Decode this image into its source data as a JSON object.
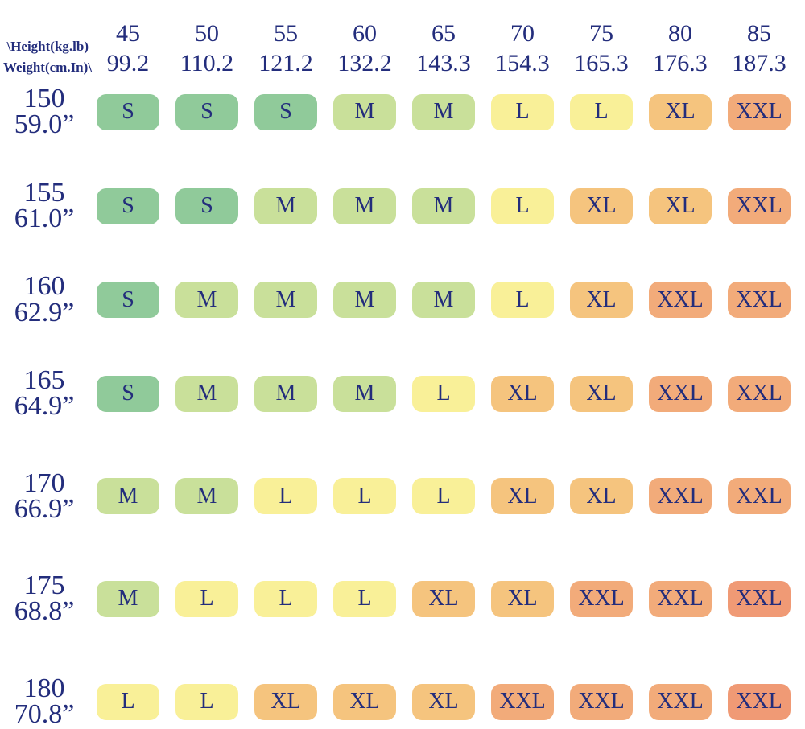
{
  "header": {
    "corner_line1": "\\Height(kg.lb)",
    "corner_line2": "Weight(cm.In)\\"
  },
  "colors": {
    "text": "#232d7c",
    "background": "#ffffff",
    "sizes": {
      "S": "#90ca9a",
      "M": "#c9e09a",
      "L": "#f9f098",
      "XL": "#f5c47e",
      "XXL": "#f2ab7a",
      "XXL_hot": "#f09a75"
    }
  },
  "chart_data": {
    "type": "table",
    "columns": [
      {
        "kg": "45",
        "lb": "99.2"
      },
      {
        "kg": "50",
        "lb": "110.2"
      },
      {
        "kg": "55",
        "lb": "121.2"
      },
      {
        "kg": "60",
        "lb": "132.2"
      },
      {
        "kg": "65",
        "lb": "143.3"
      },
      {
        "kg": "70",
        "lb": "154.3"
      },
      {
        "kg": "75",
        "lb": "165.3"
      },
      {
        "kg": "80",
        "lb": "176.3"
      },
      {
        "kg": "85",
        "lb": "187.3"
      }
    ],
    "rows": [
      {
        "cm": "150",
        "inch": "59.0”",
        "sizes": [
          "S",
          "S",
          "S",
          "M",
          "M",
          "L",
          "L",
          "XL",
          "XXL"
        ]
      },
      {
        "cm": "155",
        "inch": "61.0”",
        "sizes": [
          "S",
          "S",
          "M",
          "M",
          "M",
          "L",
          "XL",
          "XL",
          "XXL"
        ]
      },
      {
        "cm": "160",
        "inch": "62.9”",
        "sizes": [
          "S",
          "M",
          "M",
          "M",
          "M",
          "L",
          "XL",
          "XXL",
          "XXL"
        ]
      },
      {
        "cm": "165",
        "inch": "64.9”",
        "sizes": [
          "S",
          "M",
          "M",
          "M",
          "L",
          "XL",
          "XL",
          "XXL",
          "XXL"
        ]
      },
      {
        "cm": "170",
        "inch": "66.9”",
        "sizes": [
          "M",
          "M",
          "L",
          "L",
          "L",
          "XL",
          "XL",
          "XXL",
          "XXL"
        ]
      },
      {
        "cm": "175",
        "inch": "68.8”",
        "sizes": [
          "M",
          "L",
          "L",
          "L",
          "XL",
          "XL",
          "XXL",
          "XXL",
          "XXL"
        ]
      },
      {
        "cm": "180",
        "inch": "70.8”",
        "sizes": [
          "L",
          "L",
          "XL",
          "XL",
          "XL",
          "XXL",
          "XXL",
          "XXL",
          "XXL"
        ]
      }
    ],
    "hot_cells": [
      [
        5,
        8
      ],
      [
        6,
        8
      ]
    ],
    "legend_position": "none",
    "grid": false
  }
}
